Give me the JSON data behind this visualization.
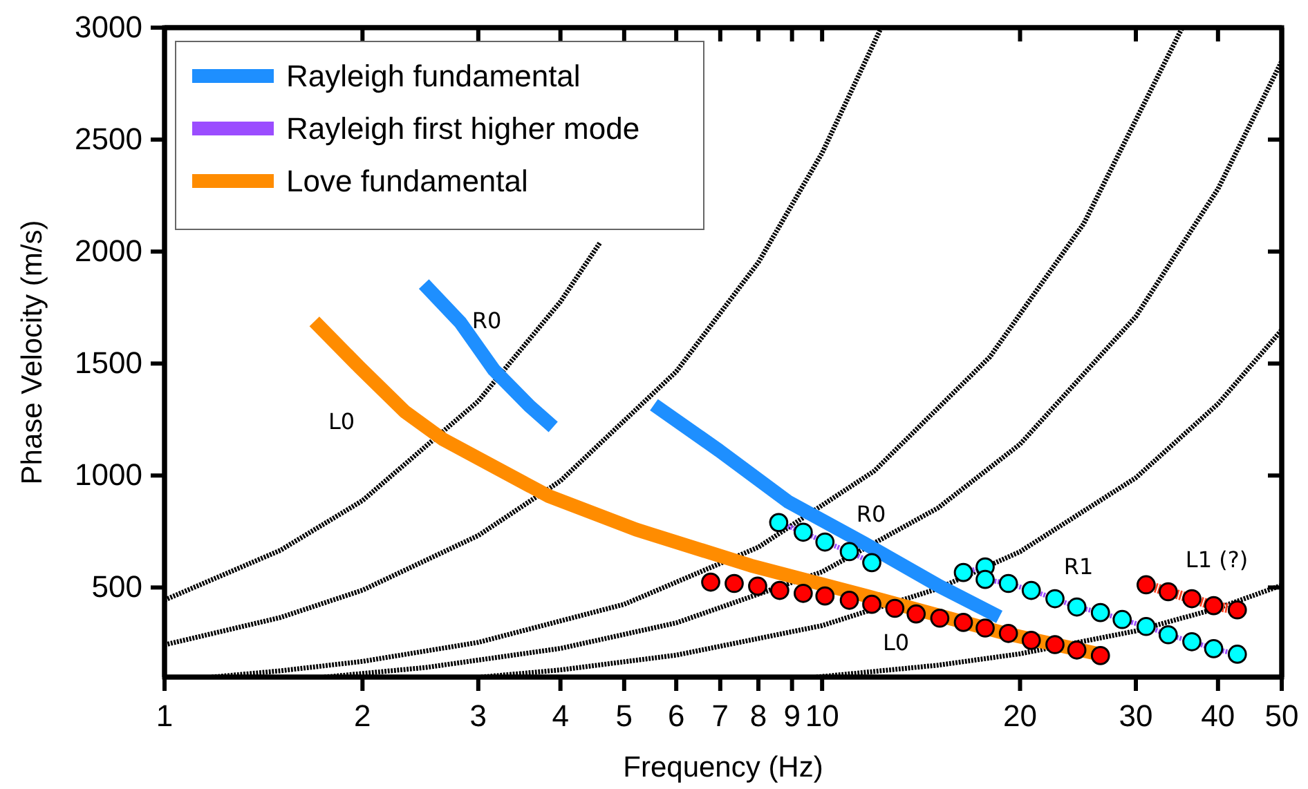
{
  "chart_data": {
    "type": "line",
    "xlabel": "Frequency (Hz)",
    "ylabel": "Phase Velocity (m/s)",
    "log": "x",
    "xlim": [
      1,
      50
    ],
    "xticks": [
      1,
      2,
      3,
      4,
      5,
      6,
      7,
      8,
      9,
      10,
      20,
      30,
      40,
      50
    ],
    "ylim": [
      100,
      3000
    ],
    "yticks": [
      500,
      1000,
      1500,
      2000,
      2500,
      3000
    ],
    "grid": false,
    "legend": "top left",
    "series": [
      {
        "color": "#000000",
        "line_style": "dashed",
        "x": [
          1,
          1.5,
          2,
          3,
          4,
          4.6
        ],
        "values": [
          444,
          666,
          888,
          1332,
          1776,
          2042
        ]
      },
      {
        "color": "#000000",
        "line_style": "dashed",
        "x": [
          1,
          1.5,
          2,
          3,
          4,
          6,
          8,
          10,
          12.3
        ],
        "values": [
          244,
          366,
          488,
          732,
          976,
          1464,
          1952,
          2440,
          3000
        ]
      },
      {
        "color": "#000000",
        "line_style": "dashed",
        "x": [
          1.18,
          1.5,
          2,
          3,
          5,
          8,
          12,
          18,
          25,
          35.3
        ],
        "values": [
          100,
          128,
          170,
          255,
          425,
          680,
          1020,
          1530,
          2125,
          3000
        ]
      },
      {
        "color": "#000000",
        "line_style": "dashed",
        "x": [
          1.75,
          2.5,
          4,
          6,
          10,
          15,
          20,
          30,
          40,
          50
        ],
        "values": [
          100,
          143,
          228,
          342,
          570,
          855,
          1140,
          1710,
          2280,
          2850
        ]
      },
      {
        "color": "#000000",
        "line_style": "dashed",
        "x": [
          3.03,
          4,
          6,
          10,
          15,
          20,
          30,
          40,
          50
        ],
        "values": [
          100,
          132,
          198,
          330,
          495,
          660,
          990,
          1320,
          1650
        ]
      },
      {
        "color": "#000000",
        "line_style": "dashed",
        "x": [
          9.8,
          15,
          20,
          30,
          40,
          50
        ],
        "values": [
          100,
          153,
          204,
          306,
          408,
          510
        ]
      },
      {
        "name": "Rayleigh fundamental",
        "color": "#1e8fff",
        "x": [
          2.48,
          2.82,
          3.17,
          3.59,
          3.9,
          4.5,
          5.55,
          6.97,
          8.88,
          11.6,
          15.1,
          18.6
        ],
        "values": [
          1855,
          1682,
          1471,
          1310,
          1217,
          null,
          1316,
          1112,
          883,
          697,
          505,
          369
        ]
      },
      {
        "name": "Rayleigh first higher mode",
        "color": "#9b4dff",
        "line_style": "dashed",
        "x": [
          8.59,
          9.36,
          10.1,
          11,
          11.9,
          14,
          16.4,
          17.7,
          17.7,
          19.2,
          20.8,
          22.6,
          24.4,
          26.5,
          28.6,
          31.1,
          33.6,
          36.5,
          39.4,
          42.8
        ],
        "values": [
          790,
          747,
          703,
          660,
          611,
          null,
          567,
          592,
          536,
          518,
          487,
          450,
          413,
          388,
          357,
          326,
          289,
          258,
          227,
          202
        ]
      },
      {
        "name": "Love fundamental",
        "color": "#ff8c00",
        "x": [
          1.69,
          1.98,
          2.32,
          2.65,
          3.84,
          5.21,
          7.79,
          11.7,
          19,
          27
        ],
        "values": [
          1688,
          1483,
          1285,
          1162,
          908,
          759,
          598,
          462,
          295,
          196
        ]
      },
      {
        "color": "#ff4020",
        "line_style": "dashed",
        "x": [
          31.1,
          33.6,
          36.5,
          39.4,
          42.8
        ],
        "values": [
          512,
          481,
          450,
          419,
          400
        ]
      },
      {
        "type": "scatter",
        "color": "#00ffff",
        "marker": "circle",
        "x": [
          8.59,
          9.36,
          10.1,
          11,
          11.9,
          16.4,
          17.7,
          17.7,
          19.2,
          20.8,
          22.6,
          24.4,
          26.5,
          28.6,
          31.1,
          33.6,
          36.5,
          39.4,
          42.8
        ],
        "values": [
          790,
          747,
          703,
          660,
          611,
          567,
          592,
          536,
          518,
          487,
          450,
          413,
          388,
          357,
          326,
          289,
          258,
          227,
          202
        ]
      },
      {
        "type": "scatter",
        "color": "#ff0000",
        "marker": "circle",
        "x": [
          6.77,
          7.35,
          7.98,
          8.62,
          9.36,
          10.1,
          11,
          11.9,
          12.9,
          13.9,
          15.1,
          16.4,
          17.7,
          19.2,
          20.8,
          22.6,
          24.4,
          26.5,
          31.1,
          33.6,
          36.5,
          39.4,
          42.8
        ],
        "values": [
          524,
          518,
          506,
          487,
          474,
          462,
          443,
          425,
          407,
          382,
          363,
          344,
          319,
          295,
          264,
          245,
          221,
          196,
          512,
          481,
          450,
          419,
          400
        ]
      }
    ],
    "annotations": [
      "R0",
      "L0",
      "R0",
      "R1",
      "L1 (?)",
      "L0"
    ]
  }
}
